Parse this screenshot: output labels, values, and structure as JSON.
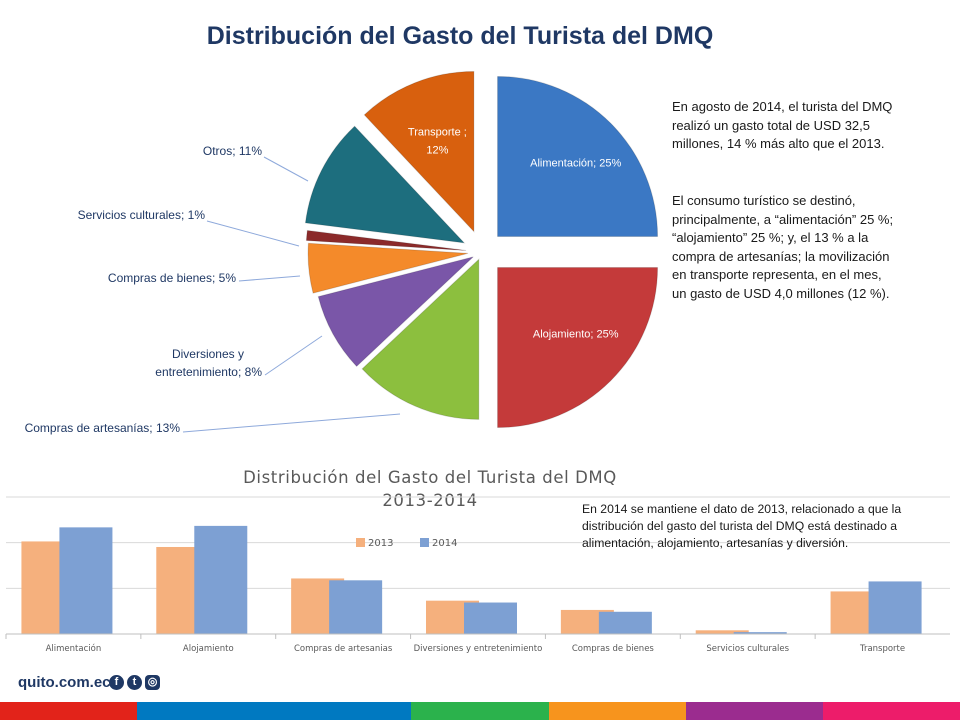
{
  "pie": {
    "title": "Distribución del Gasto del Turista del DMQ",
    "chart_data": {
      "type": "pie",
      "slices": [
        {
          "label": "Alimentación; 25%",
          "name": "Alimentación",
          "value": 25,
          "color": "#3b78c4"
        },
        {
          "label": "Alojamiento; 25%",
          "name": "Alojamiento",
          "value": 25,
          "color": "#c43a3a"
        },
        {
          "label": "Compras de artesanías; 13%",
          "name": "Compras de artesanías",
          "value": 13,
          "color": "#8cbf3e"
        },
        {
          "label": "Diversiones y entretenimiento; 8%",
          "name": "Diversiones y entretenimiento",
          "value": 8,
          "color": "#7a56a8"
        },
        {
          "label": "Compras de bienes; 5%",
          "name": "Compras de bienes",
          "value": 5,
          "color": "#f48a2a"
        },
        {
          "label": "Servicios culturales; 1%",
          "name": "Servicios culturales",
          "value": 1,
          "color": "#8b2a2a"
        },
        {
          "label": "Otros; 11%",
          "name": "Otros",
          "value": 11,
          "color": "#1d6e7e"
        },
        {
          "label": "Transporte ; 12%",
          "name": "Transporte",
          "value": 12,
          "color": "#d8600e"
        }
      ]
    },
    "paragraph1": "En agosto de 2014, el turista del DMQ realizó un gasto total de USD 32,5 millones, 14 % más alto que el 2013.",
    "paragraph2": "El consumo turístico se destinó, principalmente, a “alimentación” 25 %; “alojamiento” 25 %; y, el 13 % a la compra de artesanías; la movilización en transporte representa, en el mes, un gasto de USD 4,0 millones (12 %)."
  },
  "bar": {
    "title_line1": "Distribución del Gasto del Turista del DMQ",
    "title_line2": "2013-2014",
    "note": "En 2014 se mantiene el dato de 2013, relacionado a que la distribución del gasto del turista del DMQ está destinado a alimentación, alojamiento, artesanías y diversión.",
    "chart_data": {
      "type": "bar",
      "categories": [
        "Alimentación",
        "Alojamiento",
        "Compras de artesanias",
        "Diversiones y entretenimiento",
        "Compras de bienes",
        "Servicios culturales",
        "Transporte"
      ],
      "series": [
        {
          "name": "2013",
          "values": [
            25,
            23.5,
            15,
            9,
            6.5,
            1,
            11.5
          ],
          "color": "#f5b07d"
        },
        {
          "name": "2014",
          "values": [
            28.8,
            29.2,
            14.5,
            8.5,
            6.0,
            0.5,
            14.2
          ],
          "color": "#7da0d3"
        }
      ],
      "ylim": [
        0,
        37
      ],
      "grid": true,
      "legend_position": "top"
    }
  },
  "footer": {
    "brand": "quito.com.ec",
    "icons": [
      "facebook-icon",
      "twitter-icon",
      "instagram-icon"
    ],
    "stripe_colors": [
      "#e2231a",
      "#0079c1",
      "#0079c1",
      "#2bb24c",
      "#f7941d",
      "#9b2c8f",
      "#ed1c6a"
    ]
  }
}
